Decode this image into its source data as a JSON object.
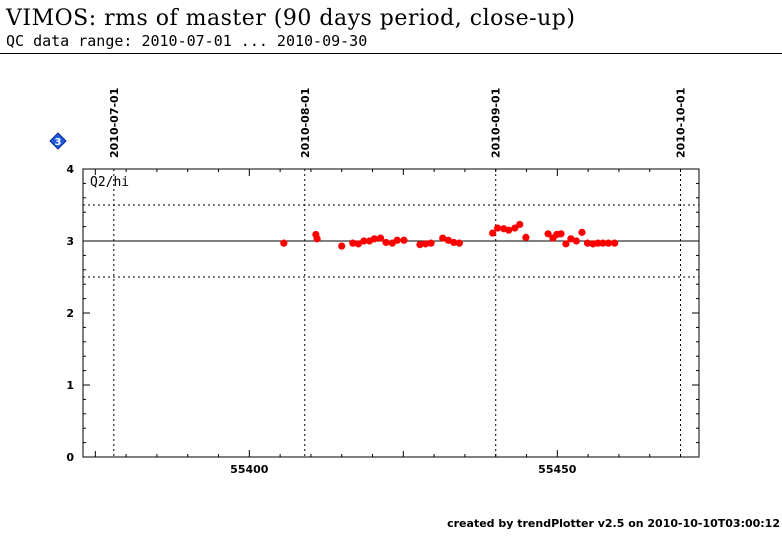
{
  "header": {
    "title": "VIMOS: rms of master (90 days period, close-up)",
    "subtitle": "QC data range: 2010-07-01 ... 2010-09-30"
  },
  "footer": {
    "text": "created by trendPlotter v2.5 on 2010-10-10T03:00:12"
  },
  "chart_data": {
    "type": "scatter",
    "panel_label": "Q2/hi",
    "marker_badge": "3",
    "xlim": [
      55373,
      55473
    ],
    "ylim": [
      0,
      4
    ],
    "x_ticks": [
      55400,
      55450
    ],
    "y_ticks": [
      0,
      1,
      2,
      3,
      4
    ],
    "grid": false,
    "reference_line": 3.0,
    "threshold_lines": [
      2.5,
      3.5
    ],
    "date_markers": [
      {
        "label": "2010-07-01",
        "x": 55378
      },
      {
        "label": "2010-08-01",
        "x": 55409
      },
      {
        "label": "2010-09-01",
        "x": 55440
      },
      {
        "label": "2010-10-01",
        "x": 55470
      }
    ],
    "point_color": "#ff0000",
    "series": [
      {
        "x": [
          55405.6,
          55410.8,
          55411.0,
          55415.0,
          55416.8,
          55417.7,
          55418.6,
          55419.5,
          55420.3,
          55421.3,
          55422.2,
          55423.2,
          55424.0,
          55425.1,
          55427.7,
          55428.6,
          55429.5,
          55431.4,
          55432.3,
          55433.2,
          55434.1,
          55439.5,
          55440.3,
          55441.3,
          55442.1,
          55443.1,
          55443.9,
          55444.9,
          55448.5,
          55449.3,
          55449.9,
          55450.6,
          55451.4,
          55452.2,
          55453.1,
          55454.0,
          55454.9,
          55455.8,
          55456.6,
          55457.4,
          55458.3,
          55459.3
        ],
        "y": [
          2.97,
          3.09,
          3.03,
          2.93,
          2.97,
          2.96,
          3.0,
          3.0,
          3.03,
          3.04,
          2.98,
          2.97,
          3.01,
          3.01,
          2.95,
          2.96,
          2.97,
          3.04,
          3.01,
          2.98,
          2.97,
          3.11,
          3.18,
          3.17,
          3.15,
          3.18,
          3.23,
          3.05,
          3.1,
          3.04,
          3.09,
          3.1,
          2.96,
          3.03,
          3.0,
          3.12,
          2.97,
          2.96,
          2.97,
          2.97,
          2.97,
          2.97
        ]
      }
    ]
  }
}
